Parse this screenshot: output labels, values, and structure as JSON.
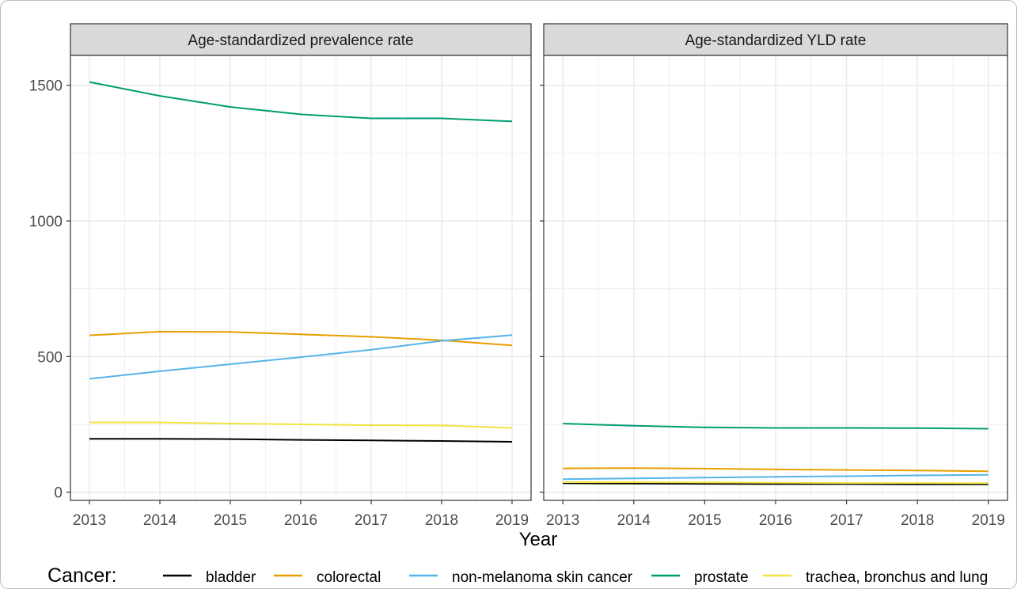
{
  "chart_data": [
    {
      "type": "line",
      "title": "Age-standardized prevalence rate",
      "x": [
        2013,
        2014,
        2015,
        2016,
        2017,
        2018,
        2019
      ],
      "ylim": [
        -30,
        1610
      ],
      "yticks": [
        0,
        500,
        1000,
        1500
      ],
      "grid": true,
      "series": [
        {
          "name": "bladder",
          "values": [
            197,
            197,
            196,
            193,
            191,
            189,
            186
          ]
        },
        {
          "name": "colorectal",
          "values": [
            578,
            592,
            591,
            582,
            573,
            560,
            541
          ]
        },
        {
          "name": "non-melanoma skin cancer",
          "values": [
            418,
            446,
            472,
            498,
            525,
            558,
            579
          ]
        },
        {
          "name": "prostate",
          "values": [
            1512,
            1461,
            1420,
            1393,
            1378,
            1378,
            1367
          ]
        },
        {
          "name": "trachea, bronchus and lung",
          "values": [
            257,
            257,
            253,
            250,
            247,
            246,
            237
          ]
        }
      ]
    },
    {
      "type": "line",
      "title": "Age-standardized YLD rate",
      "x": [
        2013,
        2014,
        2015,
        2016,
        2017,
        2018,
        2019
      ],
      "ylim": [
        -30,
        1610
      ],
      "grid": true,
      "series": [
        {
          "name": "bladder",
          "values": [
            33,
            32,
            31,
            30,
            30,
            29,
            29
          ]
        },
        {
          "name": "colorectal",
          "values": [
            88,
            89,
            87,
            84,
            82,
            80,
            77
          ]
        },
        {
          "name": "non-melanoma skin cancer",
          "values": [
            48,
            51,
            54,
            57,
            59,
            62,
            64
          ]
        },
        {
          "name": "prostate",
          "values": [
            253,
            245,
            239,
            237,
            237,
            236,
            234
          ]
        },
        {
          "name": "trachea, bronchus and lung",
          "values": [
            37,
            37,
            36,
            35,
            34,
            34,
            33
          ]
        }
      ]
    }
  ],
  "axes": {
    "xlabel": "Year"
  },
  "legend": {
    "title": "Cancer:",
    "position": "bottom",
    "items": [
      {
        "label": "bladder",
        "color": "#000000"
      },
      {
        "label": "colorectal",
        "color": "#e69f00"
      },
      {
        "label": "non-melanoma skin cancer",
        "color": "#56b4e9"
      },
      {
        "label": "prostate",
        "color": "#009e73"
      },
      {
        "label": "trachea, bronchus and lung",
        "color": "#f0e442"
      }
    ]
  },
  "colors": {
    "bladder": "#000000",
    "colorectal": "#e69f00",
    "non-melanoma skin cancer": "#56b4e9",
    "prostate": "#009e73",
    "trachea, bronchus and lung": "#f0e442",
    "strip": "#d9d9d9",
    "grid": "#ebebeb"
  }
}
